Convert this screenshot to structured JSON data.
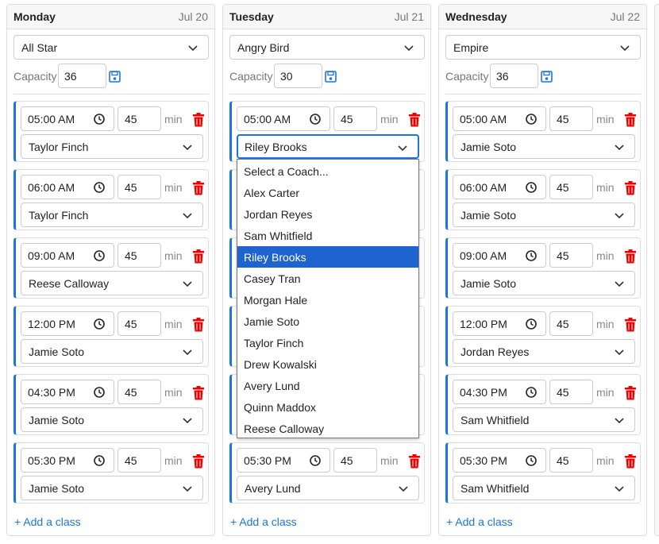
{
  "days": [
    {
      "name": "Monday",
      "date": "Jul 20",
      "template": "All Star",
      "capacity_label": "Capacity",
      "capacity": "36",
      "add_label": "+ Add a class",
      "classes": [
        {
          "time": "05:00 AM",
          "duration": "45",
          "unit": "min",
          "coach": "Taylor Finch"
        },
        {
          "time": "06:00 AM",
          "duration": "45",
          "unit": "min",
          "coach": "Taylor Finch"
        },
        {
          "time": "09:00 AM",
          "duration": "45",
          "unit": "min",
          "coach": "Reese Calloway"
        },
        {
          "time": "12:00 PM",
          "duration": "45",
          "unit": "min",
          "coach": "Jamie Soto"
        },
        {
          "time": "04:30 PM",
          "duration": "45",
          "unit": "min",
          "coach": "Jamie Soto"
        },
        {
          "time": "05:30 PM",
          "duration": "45",
          "unit": "min",
          "coach": "Jamie Soto"
        }
      ]
    },
    {
      "name": "Tuesday",
      "date": "Jul 21",
      "template": "Angry Bird",
      "capacity_label": "Capacity",
      "capacity": "30",
      "add_label": "+ Add a class",
      "classes": [
        {
          "time": "05:00 AM",
          "duration": "45",
          "unit": "min",
          "coach": "Riley Brooks"
        },
        null,
        null,
        null,
        null,
        {
          "time": "05:30 PM",
          "duration": "45",
          "unit": "min",
          "coach": "Avery Lund"
        }
      ]
    },
    {
      "name": "Wednesday",
      "date": "Jul 22",
      "template": "Empire",
      "capacity_label": "Capacity",
      "capacity": "36",
      "add_label": "+ Add a class",
      "classes": [
        {
          "time": "05:00 AM",
          "duration": "45",
          "unit": "min",
          "coach": "Jamie Soto"
        },
        {
          "time": "06:00 AM",
          "duration": "45",
          "unit": "min",
          "coach": "Jamie Soto"
        },
        {
          "time": "09:00 AM",
          "duration": "45",
          "unit": "min",
          "coach": "Jamie Soto"
        },
        {
          "time": "12:00 PM",
          "duration": "45",
          "unit": "min",
          "coach": "Jordan Reyes"
        },
        {
          "time": "04:30 PM",
          "duration": "45",
          "unit": "min",
          "coach": "Sam Whitfield"
        },
        {
          "time": "05:30 PM",
          "duration": "45",
          "unit": "min",
          "coach": "Sam Whitfield"
        }
      ]
    }
  ],
  "dropdown": {
    "options": [
      "Select a Coach...",
      "Alex Carter",
      "Jordan Reyes",
      "Sam Whitfield",
      "Riley Brooks",
      "Casey Tran",
      "Morgan Hale",
      "Jamie Soto",
      "Taylor Finch",
      "Drew Kowalski",
      "Avery Lund",
      "Quinn Maddox",
      "Reese Calloway"
    ],
    "selected": 4
  }
}
